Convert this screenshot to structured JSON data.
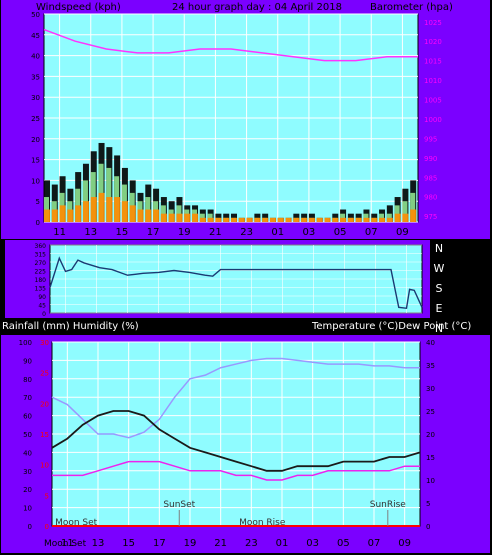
{
  "colors": {
    "frame": "#000000",
    "panel": "#7b00ff",
    "plot": "#8ffcff",
    "grid": "#ffffff",
    "left_axis": "#000000",
    "right_axis": "#ff00ff",
    "rain_axis": "#ff0000",
    "wind": "#000000",
    "gust": "#8ee28e",
    "wind_avg": "#ff8c00",
    "baro": "#ff33ff",
    "dir": "#1b3a73",
    "temp": "#1a1a1a",
    "dew": "#ee22ee",
    "humidity": "#9999ff",
    "event": "#7f7f7f",
    "rain": "#ff0000"
  },
  "header": {
    "left": "Windspeed (kph)",
    "center": "24 hour graph day : 04 April 2018",
    "right": "Barometer (hpa)"
  },
  "dir_labels": [
    "N",
    "W",
    "S",
    "E",
    "N"
  ],
  "mid_header": {
    "left": "Rainfall (mm)  Humidity (%)",
    "right": "Temperature (°C)Dew Point (°C)"
  },
  "footer": {
    "moon": "Moon Set"
  },
  "chart_data": [
    {
      "type": "line",
      "x_ticks": [
        "11",
        "13",
        "15",
        "17",
        "19",
        "21",
        "23",
        "01",
        "03",
        "05",
        "07",
        "09"
      ],
      "x_range_hours": [
        0,
        24
      ],
      "series": [],
      "y_left": {
        "ticks": [
          0,
          5,
          10,
          15,
          20,
          25,
          30,
          35,
          40,
          45,
          50
        ],
        "ylim": [
          0,
          50
        ]
      },
      "y_right": {
        "ticks": [
          975,
          980,
          985,
          990,
          995,
          1000,
          1005,
          1010,
          1015,
          1020,
          1025
        ],
        "ylim": [
          973.5,
          1027
        ]
      },
      "wind": {
        "x": [
          0,
          0.5,
          1,
          1.5,
          2,
          2.5,
          3,
          3.5,
          4,
          4.5,
          5,
          5.5,
          6,
          6.5,
          7,
          7.5,
          8,
          8.5,
          9,
          9.5,
          10,
          10.5,
          11,
          11.5,
          12,
          12.5,
          13,
          13.5,
          14,
          14.5,
          15,
          15.5,
          16,
          16.5,
          17,
          17.5,
          18,
          18.5,
          19,
          19.5,
          20,
          20.5,
          21,
          21.5,
          22,
          22.5,
          23,
          23.5,
          24
        ],
        "gust": [
          10,
          9,
          11,
          8,
          12,
          14,
          17,
          19,
          18,
          16,
          13,
          10,
          7,
          9,
          8,
          6,
          5,
          6,
          4,
          4,
          3,
          3,
          2,
          2,
          2,
          1,
          1,
          2,
          2,
          1,
          1,
          1,
          2,
          2,
          2,
          1,
          1,
          2,
          3,
          2,
          2,
          3,
          2,
          3,
          4,
          6,
          8,
          10,
          9
        ],
        "speed": [
          6,
          5,
          7,
          5,
          8,
          10,
          12,
          14,
          13,
          11,
          9,
          7,
          5,
          6,
          5,
          4,
          3,
          4,
          3,
          3,
          2,
          2,
          1,
          1,
          1,
          1,
          1,
          1,
          1,
          1,
          1,
          1,
          1,
          1,
          1,
          1,
          1,
          1,
          2,
          1,
          1,
          2,
          1,
          2,
          2,
          4,
          5,
          7,
          6
        ],
        "avg": [
          3,
          3,
          4,
          3,
          4,
          5,
          6,
          7,
          6,
          6,
          5,
          4,
          3,
          3,
          3,
          2,
          2,
          2,
          2,
          2,
          1,
          1,
          1,
          1,
          1,
          1,
          1,
          1,
          1,
          1,
          1,
          1,
          1,
          1,
          1,
          1,
          1,
          1,
          1,
          1,
          1,
          1,
          1,
          1,
          1,
          2,
          2,
          3,
          3
        ]
      },
      "barometer": {
        "x": [
          0,
          2,
          4,
          6,
          8,
          10,
          12,
          14,
          16,
          18,
          19,
          20,
          22,
          24
        ],
        "y": [
          1023,
          1020,
          1018,
          1017,
          1017,
          1018,
          1018,
          1017,
          1016,
          1015,
          1015,
          1015,
          1016,
          1016
        ]
      }
    },
    {
      "type": "line",
      "y_left": {
        "ticks": [
          0,
          45,
          90,
          135,
          180,
          225,
          270,
          315,
          360
        ],
        "ylim": [
          0,
          360
        ]
      },
      "direction": {
        "x": [
          0,
          0.6,
          1.0,
          1.4,
          1.8,
          2.2,
          3.2,
          4,
          5,
          5.5,
          6,
          7,
          8,
          9,
          10,
          10.5,
          11,
          12,
          13,
          14,
          15,
          16,
          18,
          20,
          22,
          22.5,
          23,
          23.2,
          23.5,
          24
        ],
        "y": [
          135,
          290,
          220,
          230,
          280,
          265,
          240,
          230,
          200,
          205,
          210,
          215,
          225,
          215,
          200,
          195,
          230,
          230,
          230,
          230,
          230,
          230,
          230,
          230,
          230,
          30,
          25,
          125,
          120,
          30
        ]
      }
    },
    {
      "type": "line",
      "event_labels": [
        {
          "text": "SunSet",
          "hour": 8.3,
          "pos": "upper"
        },
        {
          "text": "Moon Rise",
          "hour": 12.2,
          "pos": "lower"
        },
        {
          "text": "SunRise",
          "hour": 21.9,
          "pos": "upper"
        },
        {
          "text": "Moon Set",
          "hour": 0.2,
          "pos": "lower"
        }
      ],
      "x_ticks": [
        "11",
        "13",
        "15",
        "17",
        "19",
        "21",
        "23",
        "01",
        "03",
        "05",
        "07",
        "09"
      ],
      "series": [],
      "y_left": {
        "ticks": [
          0,
          10,
          20,
          30,
          40,
          50,
          60,
          70,
          80,
          90,
          100
        ],
        "ylim": [
          0,
          100
        ]
      },
      "y_rain": {
        "ticks": [
          0,
          5,
          10,
          15,
          20,
          25,
          30
        ],
        "ylim": [
          0,
          30
        ]
      },
      "y_right": {
        "ticks": [
          0,
          5,
          10,
          15,
          20,
          25,
          30,
          35,
          40
        ],
        "ylim": [
          0,
          40
        ]
      },
      "temperature": {
        "x": [
          0,
          1,
          2,
          3,
          4,
          5,
          6,
          7,
          8,
          9,
          10,
          11,
          12,
          13,
          14,
          15,
          16,
          17,
          18,
          19,
          20,
          21,
          22,
          23,
          24
        ],
        "y": [
          17,
          19,
          22,
          24,
          25,
          25,
          24,
          21,
          19,
          17,
          16,
          15,
          14,
          13,
          12,
          12,
          13,
          13,
          13,
          14,
          14,
          14,
          15,
          15,
          16
        ]
      },
      "dewpoint": {
        "x": [
          0,
          1,
          2,
          3,
          4,
          5,
          6,
          7,
          8,
          9,
          10,
          11,
          12,
          13,
          14,
          15,
          16,
          17,
          18,
          19,
          20,
          21,
          22,
          23,
          24
        ],
        "y": [
          11,
          11,
          11,
          12,
          13,
          14,
          14,
          14,
          13,
          12,
          12,
          12,
          11,
          11,
          10,
          10,
          11,
          11,
          12,
          12,
          12,
          12,
          12,
          13,
          13
        ]
      },
      "humidity": {
        "x": [
          0,
          1,
          2,
          3,
          4,
          5,
          6,
          7,
          8,
          9,
          10,
          11,
          12,
          13,
          14,
          15,
          16,
          17,
          18,
          19,
          20,
          21,
          22,
          23,
          24
        ],
        "y": [
          70,
          66,
          58,
          50,
          50,
          48,
          51,
          58,
          70,
          80,
          82,
          86,
          88,
          90,
          91,
          91,
          90,
          89,
          88,
          88,
          88,
          87,
          87,
          86,
          86
        ]
      },
      "rainfall": {
        "x": [
          0,
          24
        ],
        "y": [
          0,
          0
        ]
      }
    }
  ]
}
